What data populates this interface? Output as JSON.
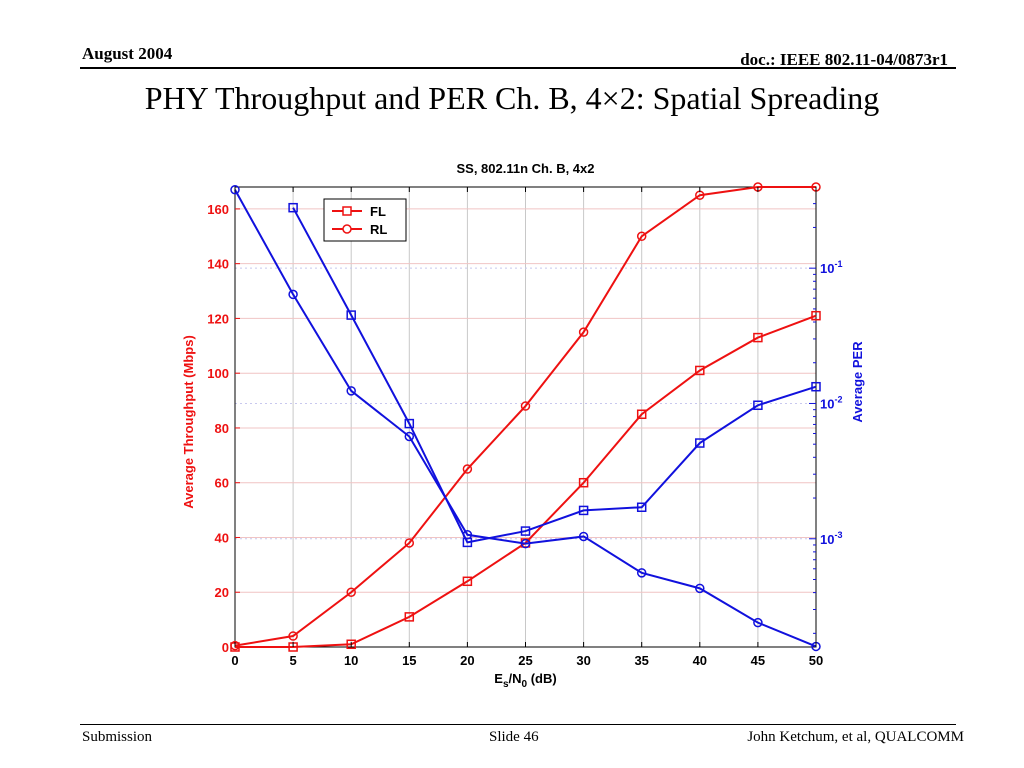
{
  "slide": {
    "date": "August 2004",
    "doc": "doc.: IEEE 802.11-04/0873r1",
    "title": "PHY Throughput and PER Ch. B, 4×2: Spatial Spreading",
    "footer_left": "Submission",
    "footer_center": "Slide 46",
    "footer_right": "John Ketchum, et al, QUALCOMM"
  },
  "chart_data": {
    "type": "line",
    "title": "SS, 802.11n Ch. B, 4x2",
    "xlabel_parts": [
      "E",
      "s",
      "/N",
      "0",
      " (dB)"
    ],
    "ylabel_left": "Average Throughput (Mbps)",
    "ylabel_right": "Average PER",
    "x": [
      0,
      5,
      10,
      15,
      20,
      25,
      30,
      35,
      40,
      45,
      50
    ],
    "x_ticks": [
      "0",
      "5",
      "10",
      "15",
      "20",
      "25",
      "30",
      "35",
      "40",
      "45",
      "50"
    ],
    "xlim": [
      0,
      50
    ],
    "ylim_left": [
      0,
      168
    ],
    "y_ticks_left": [
      "0",
      "20",
      "40",
      "60",
      "80",
      "100",
      "120",
      "140",
      "160"
    ],
    "ylim_right_log10": [
      -3.8,
      -0.4
    ],
    "y_ticks_right": [
      {
        "base": "10",
        "exp": "-1",
        "value": 0.1
      },
      {
        "base": "10",
        "exp": "-2",
        "value": 0.01
      },
      {
        "base": "10",
        "exp": "-3",
        "value": 0.001
      }
    ],
    "grid": true,
    "legend_position": "top-left",
    "series": [
      {
        "name": "FL",
        "axis": "left",
        "color": "#ee1111",
        "marker": "square",
        "values": [
          0,
          0,
          1,
          11,
          24,
          38,
          60,
          85,
          101,
          113,
          121
        ]
      },
      {
        "name": "RL",
        "axis": "left",
        "color": "#ee1111",
        "marker": "circle",
        "values": [
          0.5,
          4,
          20,
          38,
          65,
          88,
          115,
          150,
          165,
          168,
          168
        ]
      },
      {
        "name": "FL",
        "axis": "right",
        "color": "#1111dd",
        "marker": "square",
        "values": [
          null,
          0.28,
          0.045,
          0.0071,
          0.00094,
          0.00114,
          0.00162,
          0.00171,
          0.0051,
          0.0097,
          0.0133
        ]
      },
      {
        "name": "RL",
        "axis": "right",
        "color": "#1111dd",
        "marker": "circle",
        "values": [
          0.38,
          0.064,
          0.0124,
          0.0057,
          0.00107,
          0.00092,
          0.00104,
          0.00056,
          0.00043,
          0.00024,
          0.00016
        ]
      }
    ],
    "legend": [
      {
        "label": "FL",
        "marker": "square"
      },
      {
        "label": "RL",
        "marker": "circle"
      }
    ]
  }
}
